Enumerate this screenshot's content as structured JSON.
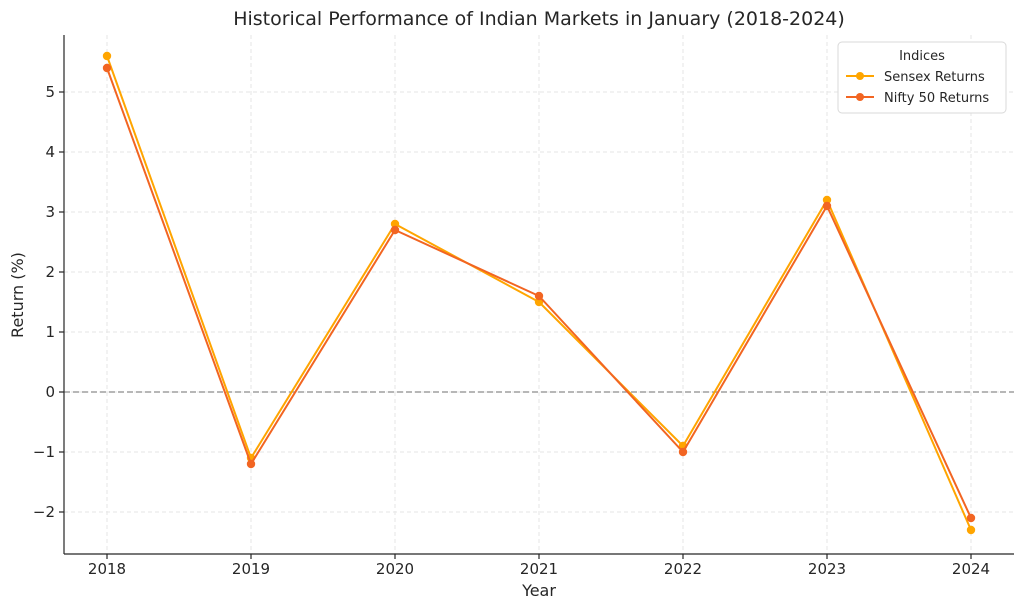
{
  "chart_data": {
    "type": "line",
    "title": "Historical Performance of Indian Markets in January (2018-2024)",
    "xlabel": "Year",
    "ylabel": "Return (%)",
    "x": [
      "2018",
      "2019",
      "2020",
      "2021",
      "2022",
      "2023",
      "2024"
    ],
    "yticks": [
      "−2",
      "−1",
      "0",
      "1",
      "2",
      "3",
      "4",
      "5"
    ],
    "ytick_values": [
      -2,
      -1,
      0,
      1,
      2,
      3,
      4,
      5
    ],
    "ylim": [
      -2.7,
      5.95
    ],
    "grid": true,
    "zero_reference_line": true,
    "legend": {
      "title": "Indices",
      "placement": "top-right"
    },
    "series": [
      {
        "name": "Sensex Returns",
        "color": "#FFA500",
        "values": [
          5.6,
          -1.1,
          2.8,
          1.5,
          -0.9,
          3.2,
          -2.3
        ]
      },
      {
        "name": "Nifty 50 Returns",
        "color": "#F26522",
        "values": [
          5.4,
          -1.2,
          2.7,
          1.6,
          -1.0,
          3.1,
          -2.1
        ]
      }
    ]
  }
}
